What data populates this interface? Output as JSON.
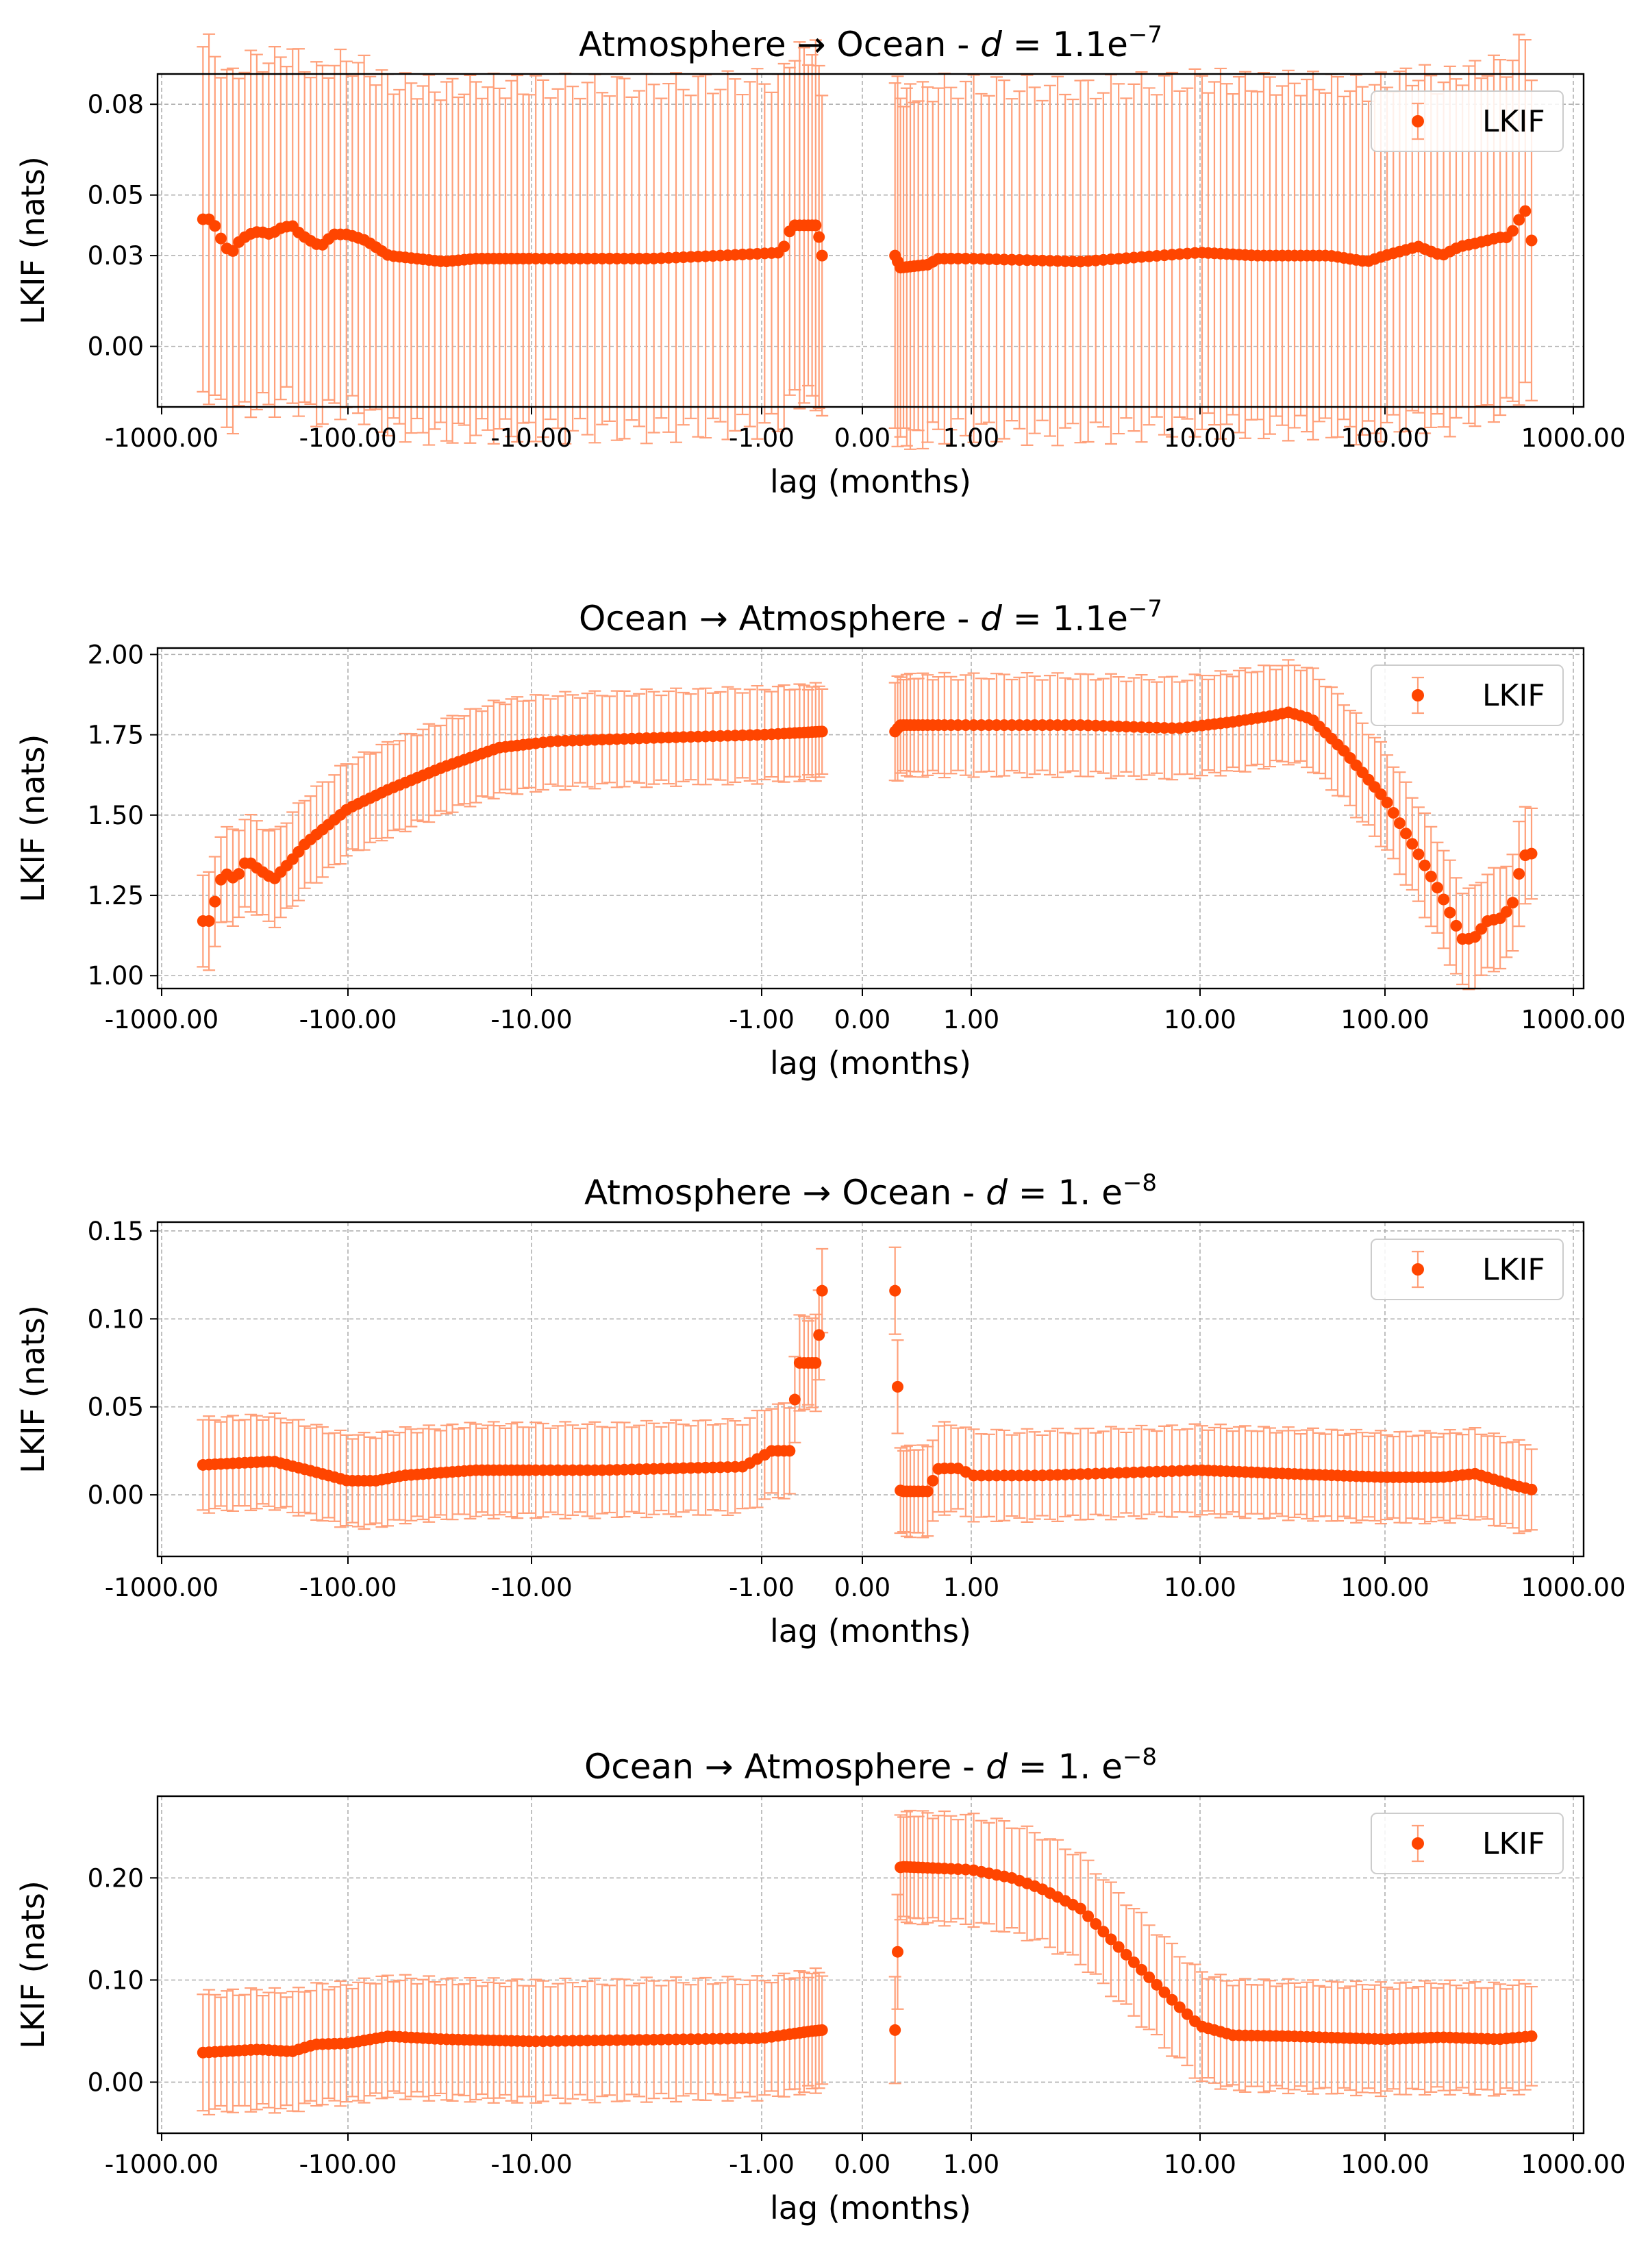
{
  "colors": {
    "points": "#ff4500",
    "errorbars": "#ffa07a",
    "grid": "#b0b0b0",
    "axes": "#000000",
    "legend_edge": "#cccccc"
  },
  "chart_data": [
    {
      "type": "scatter",
      "title_prefix": "Atmosphere",
      "title_arrow": "→",
      "title_suffix": "Ocean - ",
      "title_math_d": "d",
      "title_math_eq": " = ",
      "title_math_mant": "1.1e",
      "title_math_exp": "−7",
      "xlabel": "lag (months)",
      "ylabel": "LKIF (nats)",
      "xscale": "symlog",
      "xticks": [
        "-1000.00",
        "-100.00",
        "-10.00",
        "-1.00",
        "0.00",
        "1.00",
        "10.00",
        "100.00",
        "1000.00"
      ],
      "yticks": [
        "0.00",
        "0.03",
        "0.05",
        "0.08"
      ],
      "ylim": [
        -0.02,
        0.09
      ],
      "grid": true,
      "legend": {
        "label": "LKIF",
        "placement": "top-right"
      },
      "series": [
        {
          "name": "LKIF",
          "segments": [
            {
              "x_from": -600,
              "x_to": -0.4,
              "anchors": [
                [
                  -600,
                  0.042
                ],
                [
                  -540,
                  0.042
                ],
                [
                  -500,
                  0.038
                ],
                [
                  -460,
                  0.033
                ],
                [
                  -420,
                  0.031
                ],
                [
                  -380,
                  0.035
                ],
                [
                  -340,
                  0.037
                ],
                [
                  -300,
                  0.038
                ],
                [
                  -260,
                  0.037
                ],
                [
                  -230,
                  0.039
                ],
                [
                  -200,
                  0.04
                ],
                [
                  -180,
                  0.037
                ],
                [
                  -160,
                  0.035
                ],
                [
                  -140,
                  0.033
                ],
                [
                  -120,
                  0.037
                ],
                [
                  -100,
                  0.037
                ],
                [
                  -80,
                  0.035
                ],
                [
                  -60,
                  0.03
                ],
                [
                  -30,
                  0.028
                ],
                [
                  -20,
                  0.029
                ],
                [
                  -10,
                  0.029
                ],
                [
                  -3,
                  0.029
                ],
                [
                  -1.5,
                  0.03
                ],
                [
                  -0.8,
                  0.031
                ],
                [
                  -0.7,
                  0.04
                ],
                [
                  -0.45,
                  0.04
                ],
                [
                  -0.4,
                  0.03
                ]
              ],
              "err": 0.06
            },
            {
              "x_from": 0.3,
              "x_to": 600,
              "anchors": [
                [
                  0.3,
                  0.03
                ],
                [
                  0.35,
                  0.026
                ],
                [
                  0.6,
                  0.027
                ],
                [
                  0.7,
                  0.029
                ],
                [
                  1,
                  0.029
                ],
                [
                  3,
                  0.028
                ],
                [
                  10,
                  0.031
                ],
                [
                  20,
                  0.03
                ],
                [
                  30,
                  0.03
                ],
                [
                  50,
                  0.03
                ],
                [
                  80,
                  0.028
                ],
                [
                  100,
                  0.03
                ],
                [
                  150,
                  0.033
                ],
                [
                  200,
                  0.03
                ],
                [
                  250,
                  0.033
                ],
                [
                  300,
                  0.034
                ],
                [
                  350,
                  0.035
                ],
                [
                  400,
                  0.036
                ],
                [
                  450,
                  0.036
                ],
                [
                  500,
                  0.04
                ],
                [
                  550,
                  0.046
                ],
                [
                  600,
                  0.035
                ]
              ],
              "err": 0.06
            }
          ]
        }
      ]
    },
    {
      "type": "scatter",
      "title_prefix": "Ocean",
      "title_arrow": "→",
      "title_suffix": "Atmosphere - ",
      "title_math_d": "d",
      "title_math_eq": " = ",
      "title_math_mant": "1.1e",
      "title_math_exp": "−7",
      "xlabel": "lag (months)",
      "ylabel": "LKIF (nats)",
      "xscale": "symlog",
      "xticks": [
        "-1000.00",
        "-100.00",
        "-10.00",
        "-1.00",
        "0.00",
        "1.00",
        "10.00",
        "100.00",
        "1000.00"
      ],
      "yticks": [
        "1.00",
        "1.25",
        "1.50",
        "1.75",
        "2.00"
      ],
      "ylim": [
        0.96,
        2.02
      ],
      "grid": true,
      "legend": {
        "label": "LKIF",
        "placement": "top-right"
      },
      "series": [
        {
          "name": "LKIF",
          "segments": [
            {
              "x_from": -600,
              "x_to": -0.4,
              "anchors": [
                [
                  -600,
                  1.17
                ],
                [
                  -540,
                  1.17
                ],
                [
                  -500,
                  1.28
                ],
                [
                  -460,
                  1.32
                ],
                [
                  -400,
                  1.3
                ],
                [
                  -350,
                  1.36
                ],
                [
                  -300,
                  1.33
                ],
                [
                  -250,
                  1.3
                ],
                [
                  -200,
                  1.36
                ],
                [
                  -170,
                  1.41
                ],
                [
                  -100,
                  1.52
                ],
                [
                  -60,
                  1.58
                ],
                [
                  -30,
                  1.65
                ],
                [
                  -15,
                  1.71
                ],
                [
                  -8,
                  1.73
                ],
                [
                  -3,
                  1.74
                ],
                [
                  -1,
                  1.75
                ],
                [
                  -0.4,
                  1.76
                ]
              ],
              "err": 0.15
            },
            {
              "x_from": 0.3,
              "x_to": 600,
              "anchors": [
                [
                  0.3,
                  1.76
                ],
                [
                  0.35,
                  1.78
                ],
                [
                  1,
                  1.78
                ],
                [
                  3,
                  1.78
                ],
                [
                  8,
                  1.77
                ],
                [
                  15,
                  1.79
                ],
                [
                  25,
                  1.81
                ],
                [
                  30,
                  1.82
                ],
                [
                  40,
                  1.8
                ],
                [
                  60,
                  1.7
                ],
                [
                  100,
                  1.55
                ],
                [
                  150,
                  1.38
                ],
                [
                  200,
                  1.25
                ],
                [
                  260,
                  1.11
                ],
                [
                  300,
                  1.12
                ],
                [
                  350,
                  1.17
                ],
                [
                  420,
                  1.18
                ],
                [
                  480,
                  1.23
                ],
                [
                  520,
                  1.33
                ],
                [
                  560,
                  1.38
                ],
                [
                  600,
                  1.38
                ]
              ],
              "err": 0.16
            }
          ]
        }
      ]
    },
    {
      "type": "scatter",
      "title_prefix": "Atmosphere",
      "title_arrow": "→",
      "title_suffix": "Ocean - ",
      "title_math_d": "d",
      "title_math_eq": " = ",
      "title_math_mant": "1. e",
      "title_math_exp": "−8",
      "xlabel": "lag (months)",
      "ylabel": "LKIF (nats)",
      "xscale": "symlog",
      "xticks": [
        "-1000.00",
        "-100.00",
        "-10.00",
        "-1.00",
        "0.00",
        "1.00",
        "10.00",
        "100.00",
        "1000.00"
      ],
      "yticks": [
        "0.00",
        "0.05",
        "0.10",
        "0.15"
      ],
      "ylim": [
        -0.035,
        0.155
      ],
      "grid": true,
      "legend": {
        "label": "LKIF",
        "placement": "top-right"
      },
      "series": [
        {
          "name": "LKIF",
          "segments": [
            {
              "x_from": -600,
              "x_to": -0.4,
              "anchors": [
                [
                  -600,
                  0.017
                ],
                [
                  -400,
                  0.018
                ],
                [
                  -250,
                  0.019
                ],
                [
                  -150,
                  0.013
                ],
                [
                  -100,
                  0.008
                ],
                [
                  -70,
                  0.008
                ],
                [
                  -50,
                  0.011
                ],
                [
                  -20,
                  0.014
                ],
                [
                  -5,
                  0.014
                ],
                [
                  -1.2,
                  0.016
                ],
                [
                  -0.9,
                  0.025
                ],
                [
                  -0.7,
                  0.025
                ],
                [
                  -0.65,
                  0.075
                ],
                [
                  -0.45,
                  0.075
                ],
                [
                  -0.4,
                  0.116
                ]
              ],
              "err": 0.027
            },
            {
              "x_from": 0.3,
              "x_to": 600,
              "anchors": [
                [
                  0.3,
                  0.116
                ],
                [
                  0.35,
                  0.002
                ],
                [
                  0.6,
                  0.002
                ],
                [
                  0.7,
                  0.015
                ],
                [
                  0.9,
                  0.015
                ],
                [
                  1,
                  0.011
                ],
                [
                  2,
                  0.011
                ],
                [
                  10,
                  0.014
                ],
                [
                  30,
                  0.012
                ],
                [
                  100,
                  0.01
                ],
                [
                  200,
                  0.01
                ],
                [
                  300,
                  0.012
                ],
                [
                  400,
                  0.008
                ],
                [
                  500,
                  0.005
                ],
                [
                  600,
                  0.003
                ]
              ],
              "err": 0.026
            }
          ]
        }
      ]
    },
    {
      "type": "scatter",
      "title_prefix": "Ocean",
      "title_arrow": "→",
      "title_suffix": "Atmosphere - ",
      "title_math_d": "d",
      "title_math_eq": " = ",
      "title_math_mant": "1. e",
      "title_math_exp": "−8",
      "xlabel": "lag (months)",
      "ylabel": "LKIF (nats)",
      "xscale": "symlog",
      "xticks": [
        "-1000.00",
        "-100.00",
        "-10.00",
        "-1.00",
        "0.00",
        "1.00",
        "10.00",
        "100.00",
        "1000.00"
      ],
      "yticks": [
        "0.00",
        "0.10",
        "0.20"
      ],
      "ylim": [
        -0.05,
        0.28
      ],
      "grid": true,
      "legend": {
        "label": "LKIF",
        "placement": "top-right"
      },
      "series": [
        {
          "name": "LKIF",
          "segments": [
            {
              "x_from": -600,
              "x_to": -0.4,
              "anchors": [
                [
                  -600,
                  0.029
                ],
                [
                  -300,
                  0.032
                ],
                [
                  -200,
                  0.03
                ],
                [
                  -150,
                  0.037
                ],
                [
                  -100,
                  0.038
                ],
                [
                  -60,
                  0.045
                ],
                [
                  -30,
                  0.042
                ],
                [
                  -10,
                  0.04
                ],
                [
                  -1,
                  0.043
                ],
                [
                  -0.5,
                  0.05
                ],
                [
                  -0.4,
                  0.051
                ]
              ],
              "err": 0.06
            },
            {
              "x_from": 0.3,
              "x_to": 600,
              "anchors": [
                [
                  0.3,
                  0.051
                ],
                [
                  0.35,
                  0.211
                ],
                [
                  1,
                  0.208
                ],
                [
                  1.5,
                  0.2
                ],
                [
                  2,
                  0.19
                ],
                [
                  3,
                  0.17
                ],
                [
                  5,
                  0.12
                ],
                [
                  8,
                  0.075
                ],
                [
                  10,
                  0.055
                ],
                [
                  15,
                  0.046
                ],
                [
                  30,
                  0.045
                ],
                [
                  100,
                  0.042
                ],
                [
                  200,
                  0.044
                ],
                [
                  400,
                  0.042
                ],
                [
                  600,
                  0.045
                ]
              ],
              "err": 0.055
            }
          ]
        }
      ]
    }
  ]
}
